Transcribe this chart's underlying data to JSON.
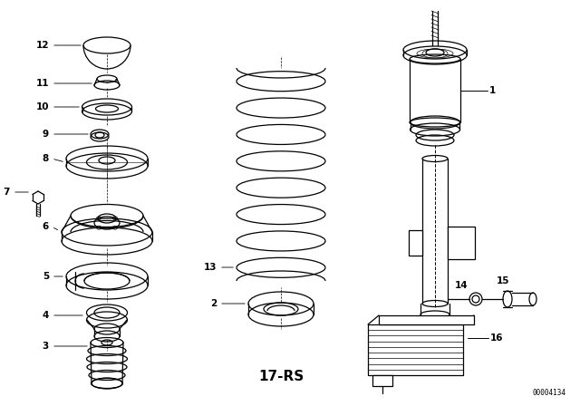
{
  "background_color": "#ffffff",
  "line_color": "#000000",
  "text_color": "#000000",
  "label_fontsize": 7.5,
  "diagram_label": "17-RS",
  "doc_number": "00004134",
  "figsize": [
    6.4,
    4.48
  ],
  "dpi": 100
}
